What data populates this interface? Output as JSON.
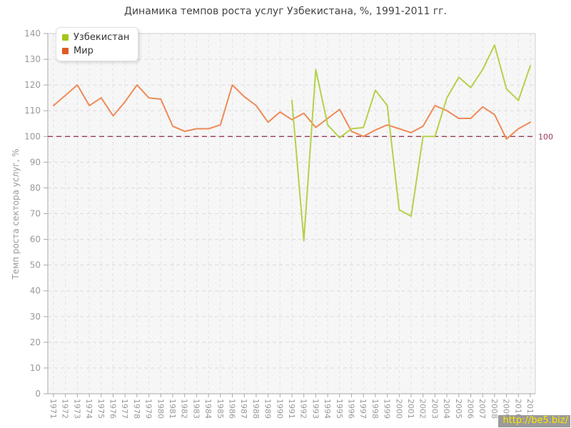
{
  "title": "Динамика темпов роста услуг Узбекистана, %, 1991-2011 гг.",
  "watermark": "http://be5.biz/",
  "colors": {
    "uzbekistan_line": "#b4d14b",
    "uzbekistan_legend": "#a3c61a",
    "world_line": "#ee8a57",
    "world_legend": "#dd5b25",
    "baseline": "#9a3b50",
    "grid_horizontal": "#dbdbdb",
    "grid_vertical": "#e3e3e3",
    "axis": "#a9a9a9",
    "border": "#cfcfcf",
    "tick_text": "#999999",
    "plot_background": "#f7f7f7",
    "title_text": "#444444"
  },
  "legend": {
    "position": "top-left",
    "items": [
      {
        "label": "Узбекистан",
        "color": "#a3c61a",
        "key": "uzbekistan"
      },
      {
        "label": "Мир",
        "color": "#dd5b25",
        "key": "world"
      }
    ]
  },
  "chart_data": {
    "type": "line",
    "title": "Динамика темпов роста услуг Узбекистана, %, 1991-2011 гг.",
    "xlabel": "",
    "ylabel": "Темп роста сектора услуг, %",
    "ylim": [
      0,
      140
    ],
    "ytick_step": 10,
    "grid": true,
    "legend_position": "top-left",
    "x": [
      1971,
      1972,
      1973,
      1974,
      1975,
      1976,
      1977,
      1978,
      1979,
      1980,
      1981,
      1982,
      1983,
      1984,
      1985,
      1986,
      1987,
      1988,
      1989,
      1990,
      1991,
      1992,
      1993,
      1994,
      1995,
      1996,
      1997,
      1998,
      1999,
      2000,
      2001,
      2002,
      2003,
      2004,
      2005,
      2006,
      2007,
      2008,
      2009,
      2010,
      2011
    ],
    "series": [
      {
        "name": "Мир",
        "key": "world",
        "color": "#ee8a57",
        "legend_color": "#dd5b25",
        "values": [
          112,
          116,
          120,
          112,
          115,
          108,
          113.5,
          120,
          115,
          114.5,
          104,
          102,
          103,
          103,
          104.5,
          120,
          115.5,
          112,
          105.5,
          109.5,
          106.5,
          109,
          103.5,
          107,
          110.5,
          102,
          100,
          102.5,
          104.5,
          103,
          101.5,
          104,
          112,
          110,
          107,
          107,
          111.5,
          108.5,
          99,
          103,
          105.5
        ]
      },
      {
        "name": "Узбекистан",
        "key": "uzbekistan",
        "color": "#b4d14b",
        "legend_color": "#a3c61a",
        "values": [
          null,
          null,
          null,
          null,
          null,
          null,
          null,
          null,
          null,
          null,
          null,
          null,
          null,
          null,
          null,
          null,
          null,
          null,
          null,
          null,
          114,
          59.5,
          126,
          104.5,
          99.5,
          103,
          103.5,
          118,
          112,
          71.5,
          69,
          100,
          100,
          115,
          123,
          119,
          126,
          135.5,
          118.5,
          114,
          127.5
        ]
      }
    ],
    "annotations": [
      {
        "type": "hline",
        "y": 100,
        "label": "100",
        "color": "#9a3b50",
        "style": "dashed"
      }
    ]
  }
}
